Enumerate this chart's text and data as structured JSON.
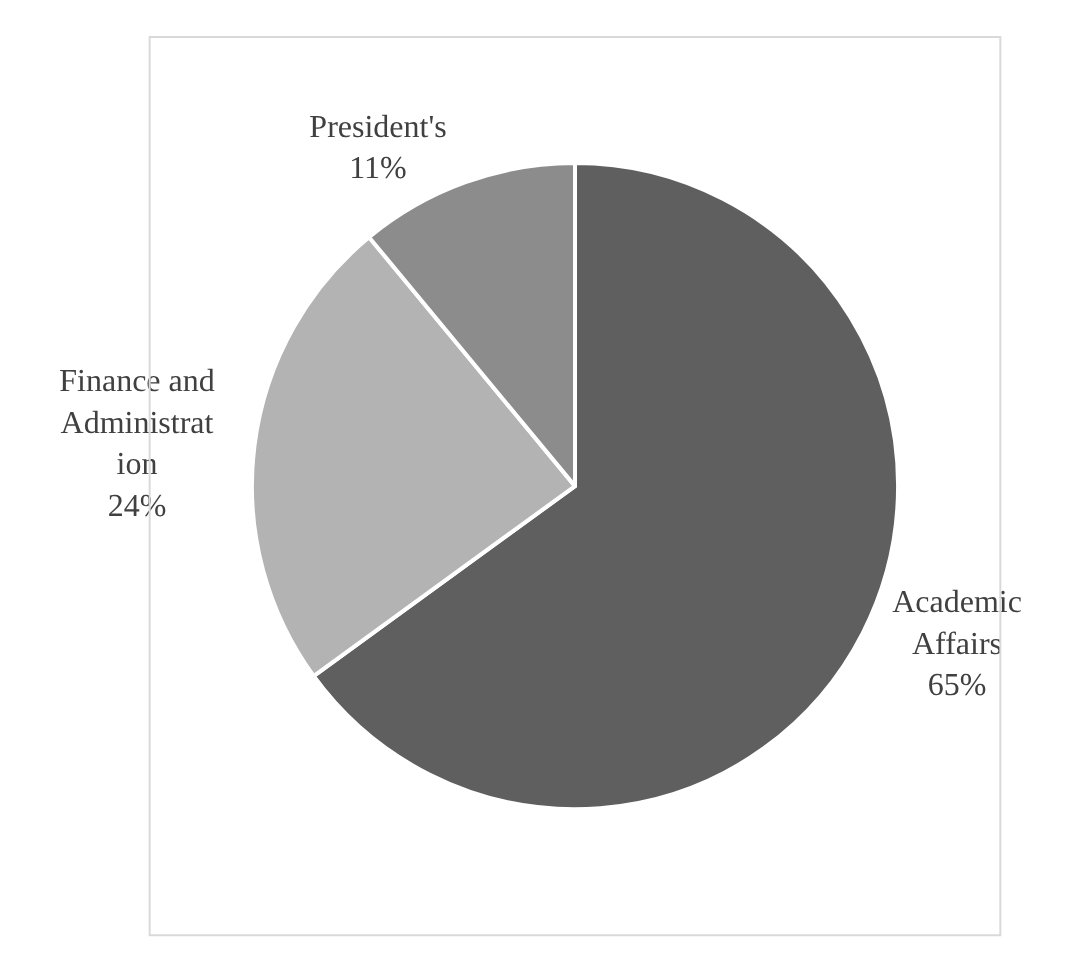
{
  "chart_data": {
    "type": "pie",
    "categories": [
      "Academic Affairs",
      "Finance and Administration",
      "President's"
    ],
    "values": [
      65,
      24,
      11
    ],
    "colors": [
      "#5f5f5f",
      "#b3b3b3",
      "#8c8c8c"
    ],
    "value_labels": [
      "65%",
      "24%",
      "11%"
    ],
    "legend": false
  }
}
